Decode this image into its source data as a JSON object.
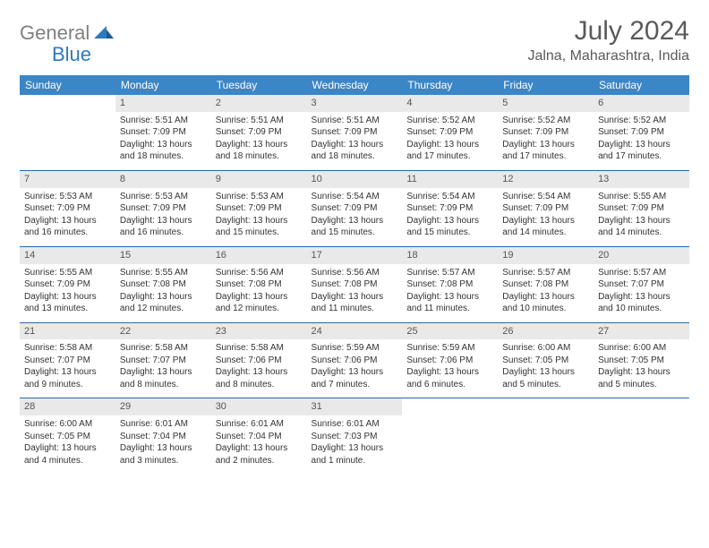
{
  "logo": {
    "part1": "General",
    "part2": "Blue"
  },
  "title": "July 2024",
  "location": "Jalna, Maharashtra, India",
  "headers": [
    "Sunday",
    "Monday",
    "Tuesday",
    "Wednesday",
    "Thursday",
    "Friday",
    "Saturday"
  ],
  "colors": {
    "header_bg": "#3b86c6",
    "header_text": "#ffffff",
    "daynum_bg": "#e9e9e9",
    "row_border": "#2a6aa8",
    "logo_gray": "#808080",
    "logo_blue": "#2f78bd"
  },
  "weeks": [
    [
      null,
      {
        "n": "1",
        "sr": "Sunrise: 5:51 AM",
        "ss": "Sunset: 7:09 PM",
        "d1": "Daylight: 13 hours",
        "d2": "and 18 minutes."
      },
      {
        "n": "2",
        "sr": "Sunrise: 5:51 AM",
        "ss": "Sunset: 7:09 PM",
        "d1": "Daylight: 13 hours",
        "d2": "and 18 minutes."
      },
      {
        "n": "3",
        "sr": "Sunrise: 5:51 AM",
        "ss": "Sunset: 7:09 PM",
        "d1": "Daylight: 13 hours",
        "d2": "and 18 minutes."
      },
      {
        "n": "4",
        "sr": "Sunrise: 5:52 AM",
        "ss": "Sunset: 7:09 PM",
        "d1": "Daylight: 13 hours",
        "d2": "and 17 minutes."
      },
      {
        "n": "5",
        "sr": "Sunrise: 5:52 AM",
        "ss": "Sunset: 7:09 PM",
        "d1": "Daylight: 13 hours",
        "d2": "and 17 minutes."
      },
      {
        "n": "6",
        "sr": "Sunrise: 5:52 AM",
        "ss": "Sunset: 7:09 PM",
        "d1": "Daylight: 13 hours",
        "d2": "and 17 minutes."
      }
    ],
    [
      {
        "n": "7",
        "sr": "Sunrise: 5:53 AM",
        "ss": "Sunset: 7:09 PM",
        "d1": "Daylight: 13 hours",
        "d2": "and 16 minutes."
      },
      {
        "n": "8",
        "sr": "Sunrise: 5:53 AM",
        "ss": "Sunset: 7:09 PM",
        "d1": "Daylight: 13 hours",
        "d2": "and 16 minutes."
      },
      {
        "n": "9",
        "sr": "Sunrise: 5:53 AM",
        "ss": "Sunset: 7:09 PM",
        "d1": "Daylight: 13 hours",
        "d2": "and 15 minutes."
      },
      {
        "n": "10",
        "sr": "Sunrise: 5:54 AM",
        "ss": "Sunset: 7:09 PM",
        "d1": "Daylight: 13 hours",
        "d2": "and 15 minutes."
      },
      {
        "n": "11",
        "sr": "Sunrise: 5:54 AM",
        "ss": "Sunset: 7:09 PM",
        "d1": "Daylight: 13 hours",
        "d2": "and 15 minutes."
      },
      {
        "n": "12",
        "sr": "Sunrise: 5:54 AM",
        "ss": "Sunset: 7:09 PM",
        "d1": "Daylight: 13 hours",
        "d2": "and 14 minutes."
      },
      {
        "n": "13",
        "sr": "Sunrise: 5:55 AM",
        "ss": "Sunset: 7:09 PM",
        "d1": "Daylight: 13 hours",
        "d2": "and 14 minutes."
      }
    ],
    [
      {
        "n": "14",
        "sr": "Sunrise: 5:55 AM",
        "ss": "Sunset: 7:09 PM",
        "d1": "Daylight: 13 hours",
        "d2": "and 13 minutes."
      },
      {
        "n": "15",
        "sr": "Sunrise: 5:55 AM",
        "ss": "Sunset: 7:08 PM",
        "d1": "Daylight: 13 hours",
        "d2": "and 12 minutes."
      },
      {
        "n": "16",
        "sr": "Sunrise: 5:56 AM",
        "ss": "Sunset: 7:08 PM",
        "d1": "Daylight: 13 hours",
        "d2": "and 12 minutes."
      },
      {
        "n": "17",
        "sr": "Sunrise: 5:56 AM",
        "ss": "Sunset: 7:08 PM",
        "d1": "Daylight: 13 hours",
        "d2": "and 11 minutes."
      },
      {
        "n": "18",
        "sr": "Sunrise: 5:57 AM",
        "ss": "Sunset: 7:08 PM",
        "d1": "Daylight: 13 hours",
        "d2": "and 11 minutes."
      },
      {
        "n": "19",
        "sr": "Sunrise: 5:57 AM",
        "ss": "Sunset: 7:08 PM",
        "d1": "Daylight: 13 hours",
        "d2": "and 10 minutes."
      },
      {
        "n": "20",
        "sr": "Sunrise: 5:57 AM",
        "ss": "Sunset: 7:07 PM",
        "d1": "Daylight: 13 hours",
        "d2": "and 10 minutes."
      }
    ],
    [
      {
        "n": "21",
        "sr": "Sunrise: 5:58 AM",
        "ss": "Sunset: 7:07 PM",
        "d1": "Daylight: 13 hours",
        "d2": "and 9 minutes."
      },
      {
        "n": "22",
        "sr": "Sunrise: 5:58 AM",
        "ss": "Sunset: 7:07 PM",
        "d1": "Daylight: 13 hours",
        "d2": "and 8 minutes."
      },
      {
        "n": "23",
        "sr": "Sunrise: 5:58 AM",
        "ss": "Sunset: 7:06 PM",
        "d1": "Daylight: 13 hours",
        "d2": "and 8 minutes."
      },
      {
        "n": "24",
        "sr": "Sunrise: 5:59 AM",
        "ss": "Sunset: 7:06 PM",
        "d1": "Daylight: 13 hours",
        "d2": "and 7 minutes."
      },
      {
        "n": "25",
        "sr": "Sunrise: 5:59 AM",
        "ss": "Sunset: 7:06 PM",
        "d1": "Daylight: 13 hours",
        "d2": "and 6 minutes."
      },
      {
        "n": "26",
        "sr": "Sunrise: 6:00 AM",
        "ss": "Sunset: 7:05 PM",
        "d1": "Daylight: 13 hours",
        "d2": "and 5 minutes."
      },
      {
        "n": "27",
        "sr": "Sunrise: 6:00 AM",
        "ss": "Sunset: 7:05 PM",
        "d1": "Daylight: 13 hours",
        "d2": "and 5 minutes."
      }
    ],
    [
      {
        "n": "28",
        "sr": "Sunrise: 6:00 AM",
        "ss": "Sunset: 7:05 PM",
        "d1": "Daylight: 13 hours",
        "d2": "and 4 minutes."
      },
      {
        "n": "29",
        "sr": "Sunrise: 6:01 AM",
        "ss": "Sunset: 7:04 PM",
        "d1": "Daylight: 13 hours",
        "d2": "and 3 minutes."
      },
      {
        "n": "30",
        "sr": "Sunrise: 6:01 AM",
        "ss": "Sunset: 7:04 PM",
        "d1": "Daylight: 13 hours",
        "d2": "and 2 minutes."
      },
      {
        "n": "31",
        "sr": "Sunrise: 6:01 AM",
        "ss": "Sunset: 7:03 PM",
        "d1": "Daylight: 13 hours",
        "d2": "and 1 minute."
      },
      null,
      null,
      null
    ]
  ]
}
